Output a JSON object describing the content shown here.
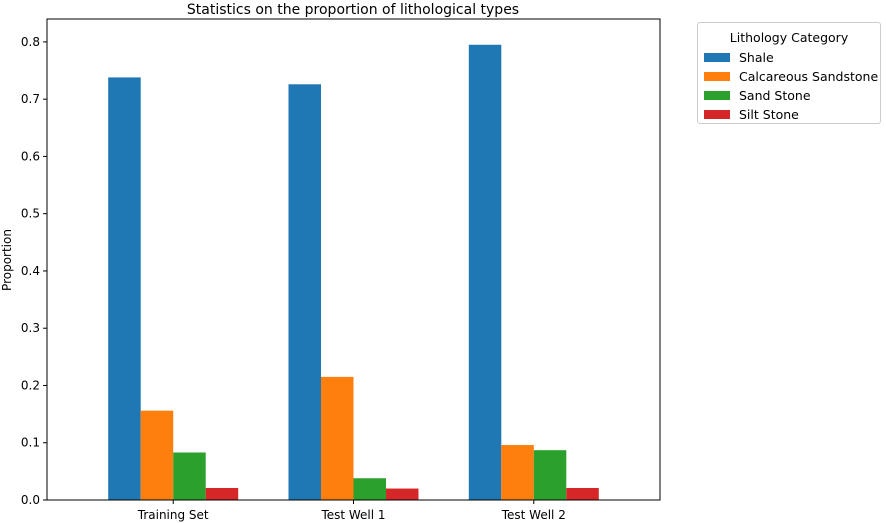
{
  "chart_data": {
    "type": "bar",
    "title": "Statistics on the proportion of lithological types",
    "xlabel": "",
    "ylabel": "Proportion",
    "categories": [
      "Training Set",
      "Test Well 1",
      "Test Well 2"
    ],
    "ylim": [
      0,
      0.84
    ],
    "yticks": [
      "0.0",
      "0.1",
      "0.2",
      "0.3",
      "0.4",
      "0.5",
      "0.6",
      "0.7",
      "0.8"
    ],
    "grid": false,
    "legend_title": "Lithology Category",
    "legend_position": "outside-top-right",
    "series": [
      {
        "name": "Shale",
        "color": "#1f77b4",
        "values": [
          0.738,
          0.726,
          0.795
        ]
      },
      {
        "name": "Calcareous Sandstone",
        "color": "#ff7f0e",
        "values": [
          0.156,
          0.215,
          0.096
        ]
      },
      {
        "name": "Sand Stone",
        "color": "#2ca02c",
        "values": [
          0.083,
          0.038,
          0.087
        ]
      },
      {
        "name": "Silt Stone",
        "color": "#d62728",
        "values": [
          0.021,
          0.02,
          0.021
        ]
      }
    ]
  }
}
